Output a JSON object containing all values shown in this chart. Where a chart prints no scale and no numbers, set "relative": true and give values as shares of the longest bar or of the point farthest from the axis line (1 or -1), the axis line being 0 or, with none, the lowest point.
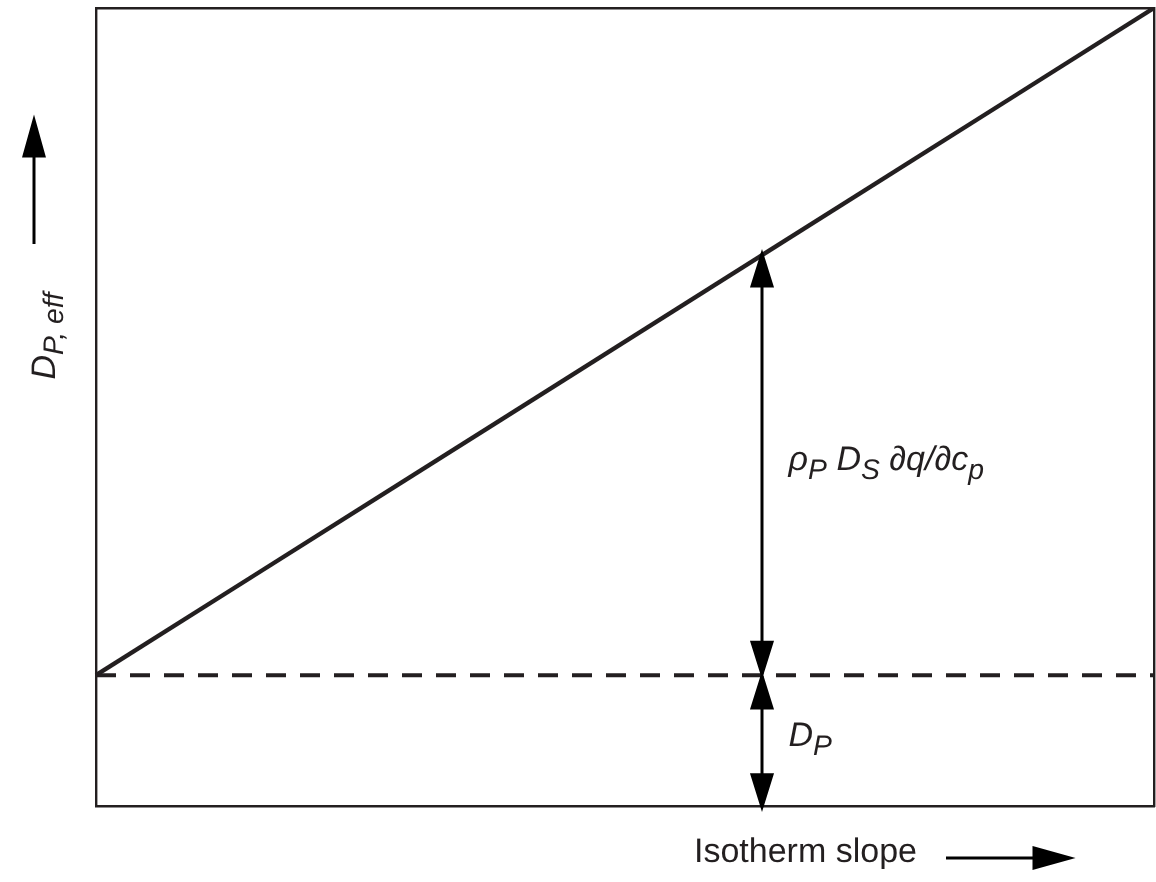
{
  "chart_data": {
    "type": "line",
    "relative": true,
    "categories": [
      null,
      null
    ],
    "series": [
      {
        "color": "#231f20",
        "values": [
          0.164,
          1
        ]
      }
    ],
    "ref_lines": [
      {
        "axis": "y",
        "value": 0.164,
        "color": "#231f20",
        "line_style": "dashed"
      }
    ],
    "xlabel": "Isotherm slope",
    "ylabel": "D$_{P, eff}$",
    "annotations": [
      "ρ$_{P}$ D$_{S}$ ∂q/∂c$_{p}$",
      "D$_{P}$"
    ],
    "legend": false,
    "marker": "none",
    "line_style": "solid"
  }
}
